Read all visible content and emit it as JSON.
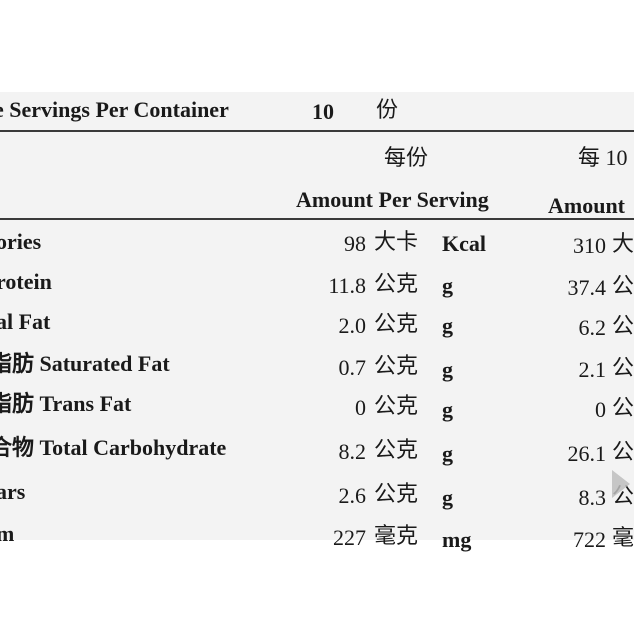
{
  "header": {
    "servings_label": "e Servings Per Container",
    "servings_value": "10",
    "servings_unit": "份"
  },
  "columns": {
    "per_serving_zh": "每份",
    "per_serving_en": "Amount Per Serving",
    "per_100_zh": "每 10",
    "per_100_en": "Amount"
  },
  "rows": [
    {
      "name": "ories",
      "v1": "98",
      "u1_zh": "大卡",
      "u1_en": "Kcal",
      "v2": "310",
      "u2": "大"
    },
    {
      "name": "rotein",
      "v1": "11.8",
      "u1_zh": "公克",
      "u1_en": "g",
      "v2": "37.4",
      "u2": "公"
    },
    {
      "name": "al Fat",
      "v1": "2.0",
      "u1_zh": "公克",
      "u1_en": "g",
      "v2": "6.2",
      "u2": "公"
    },
    {
      "name": "脂肪 Saturated Fat",
      "v1": "0.7",
      "u1_zh": "公克",
      "u1_en": "g",
      "v2": "2.1",
      "u2": "公"
    },
    {
      "name": "脂肪 Trans Fat",
      "v1": "0",
      "u1_zh": "公克",
      "u1_en": "g",
      "v2": "0",
      "u2": "公"
    },
    {
      "name": "合物 Total Carbohydrate",
      "v1": "8.2",
      "u1_zh": "公克",
      "u1_en": "g",
      "v2": "26.1",
      "u2": "公"
    },
    {
      "name": "ars",
      "v1": "2.6",
      "u1_zh": "公克",
      "u1_en": "g",
      "v2": "8.3",
      "u2": "公"
    },
    {
      "name": "m",
      "v1": "227",
      "u1_zh": "毫克",
      "u1_en": "mg",
      "v2": "722",
      "u2": "毫"
    }
  ]
}
